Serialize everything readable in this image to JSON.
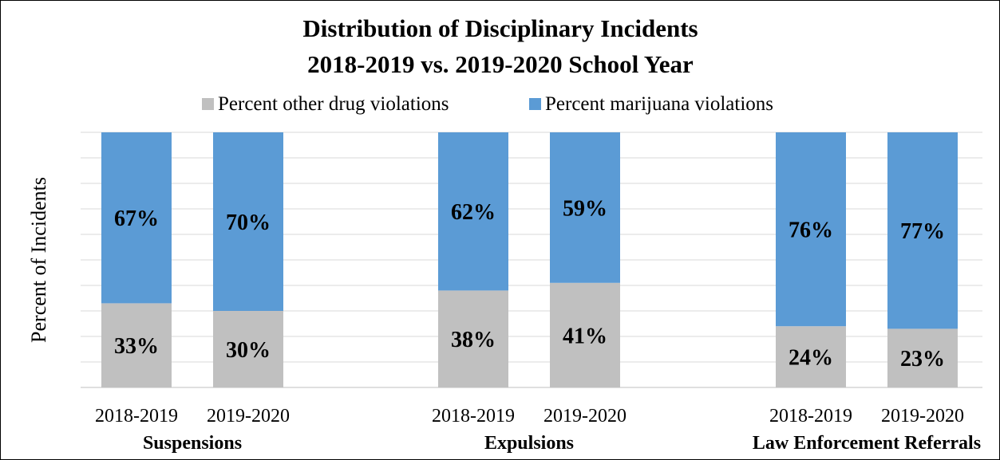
{
  "chart_data": {
    "type": "bar",
    "stacked": true,
    "percent_stacked": true,
    "title": "Distribution of Disciplinary Incidents",
    "subtitle": "2018-2019 vs. 2019-2020 School Year",
    "xlabel": "",
    "ylabel": "Percent of Incidents",
    "ylim": [
      0,
      100
    ],
    "y_tick_labels_shown": false,
    "grid": true,
    "legend_position": "top",
    "groups": [
      {
        "label": "Suspensions",
        "categories": [
          "2018-2019",
          "2019-2020"
        ]
      },
      {
        "label": "Expulsions",
        "categories": [
          "2018-2019",
          "2019-2020"
        ]
      },
      {
        "label": "Law Enforcement Referrals",
        "categories": [
          "2018-2019",
          "2019-2020"
        ]
      }
    ],
    "series": [
      {
        "name": "Percent other drug violations",
        "color": "#c0c0c0",
        "values": [
          33,
          30,
          38,
          41,
          24,
          23
        ],
        "labels": [
          "33%",
          "30%",
          "38%",
          "41%",
          "24%",
          "23%"
        ]
      },
      {
        "name": "Percent marijuana violations",
        "color": "#5b9bd5",
        "values": [
          67,
          70,
          62,
          59,
          76,
          77
        ],
        "labels": [
          "67%",
          "70%",
          "62%",
          "59%",
          "76%",
          "77%"
        ]
      }
    ]
  }
}
